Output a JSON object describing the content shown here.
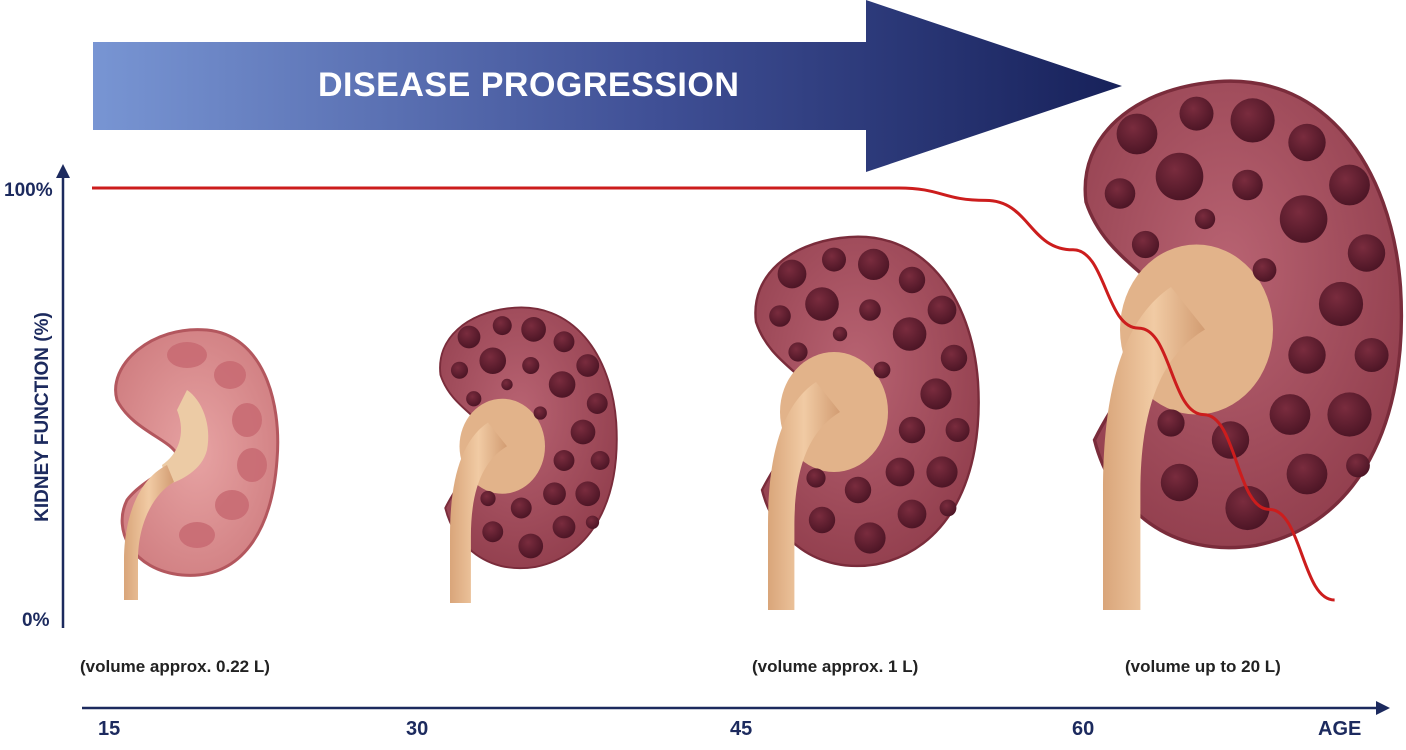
{
  "banner": {
    "label": "DISEASE PROGRESSION"
  },
  "axes": {
    "y_title": "KIDNEY FUNCTION (%)",
    "y_ticks": [
      "100%",
      "0%"
    ],
    "x_ticks": [
      "15",
      "30",
      "45",
      "60"
    ],
    "x_title": "AGE"
  },
  "kidneys": [
    {
      "stage": "healthy",
      "volume_label": "(volume approx. 0.22 L)"
    },
    {
      "stage": "early",
      "volume_label": ""
    },
    {
      "stage": "intermediate",
      "volume_label": "(volume approx. 1 L)"
    },
    {
      "stage": "advanced",
      "volume_label": "(volume up to 20 L)"
    }
  ],
  "colors": {
    "banner_start": "#7895d3",
    "banner_end": "#17215a",
    "axis": "#1c2a5e",
    "function_curve": "#cc1d1d",
    "kidney_tissue": "#a24c5b",
    "cyst": "#5c1f2e",
    "ureter": "#e8bf98"
  },
  "chart_data": {
    "type": "line",
    "xlabel": "AGE",
    "ylabel": "KIDNEY FUNCTION (%)",
    "x_ticks": [
      15,
      30,
      45,
      60
    ],
    "y_ticks": [
      "0%",
      "100%"
    ],
    "series": [
      {
        "x": [
          15,
          30,
          45,
          52,
          56,
          60,
          63,
          66,
          69,
          72
        ],
        "y": [
          100,
          100,
          100,
          100,
          97,
          85,
          66,
          45,
          22,
          0
        ]
      }
    ]
  }
}
